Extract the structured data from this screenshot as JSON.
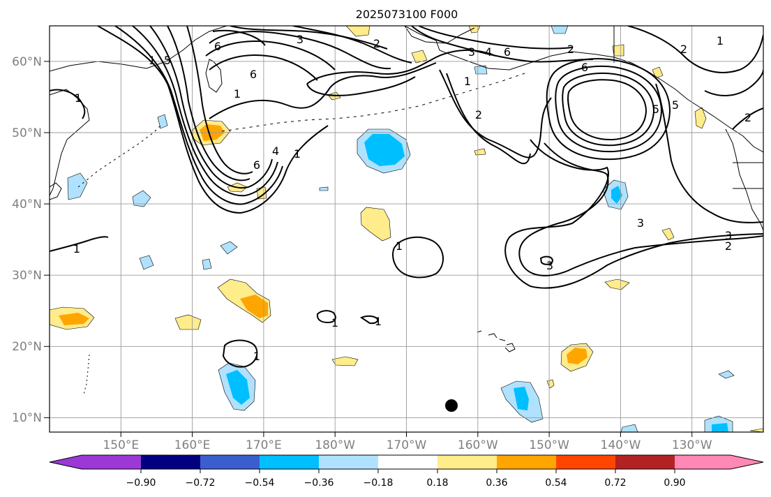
{
  "title": "2025073100 F000",
  "map": {
    "lon_labels": [
      "150°E",
      "160°E",
      "170°E",
      "180°W",
      "170°W",
      "160°W",
      "150°W",
      "140°W",
      "130°W"
    ],
    "lat_labels": [
      "60°N",
      "50°N",
      "40°N",
      "30°N",
      "20°N",
      "10°N"
    ],
    "lon_range": [
      140,
      240
    ],
    "lat_range": [
      8,
      65
    ],
    "grid": true
  },
  "colorbar": {
    "ticks": [
      "−0.90",
      "−0.72",
      "−0.54",
      "−0.36",
      "−0.18",
      "0.18",
      "0.36",
      "0.54",
      "0.72",
      "0.90"
    ],
    "colors": [
      "#9c39d6",
      "#000080",
      "#3a5fcd",
      "#00bfff",
      "#b0e2ff",
      "#ffffff",
      "#ffec8b",
      "#ffa500",
      "#ff4500",
      "#b22222",
      "#ff88b4"
    ],
    "extend": "both"
  },
  "contour_labels": [
    "3",
    "2",
    "6",
    "5",
    "1",
    "6",
    "4",
    "6",
    "1",
    "1",
    "3",
    "4",
    "6",
    "2",
    "6",
    "1",
    "2",
    "5",
    "2",
    "1",
    "5",
    "2",
    "1",
    "3",
    "2",
    "3",
    "1",
    "1",
    "1",
    "3",
    "1",
    "1"
  ],
  "colors": {
    "contour": "#000000",
    "grid": "#999999",
    "coast": "#000000"
  }
}
